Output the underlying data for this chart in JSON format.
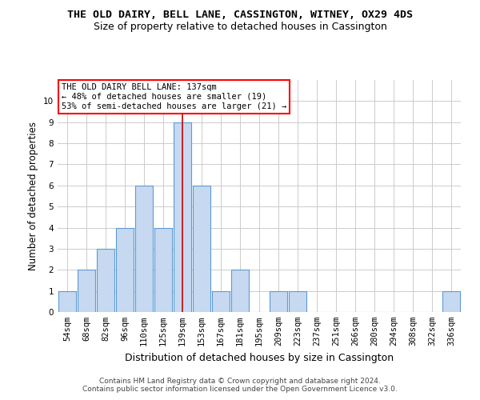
{
  "title": "THE OLD DAIRY, BELL LANE, CASSINGTON, WITNEY, OX29 4DS",
  "subtitle": "Size of property relative to detached houses in Cassington",
  "xlabel": "Distribution of detached houses by size in Cassington",
  "ylabel": "Number of detached properties",
  "categories": [
    "54sqm",
    "68sqm",
    "82sqm",
    "96sqm",
    "110sqm",
    "125sqm",
    "139sqm",
    "153sqm",
    "167sqm",
    "181sqm",
    "195sqm",
    "209sqm",
    "223sqm",
    "237sqm",
    "251sqm",
    "266sqm",
    "280sqm",
    "294sqm",
    "308sqm",
    "322sqm",
    "336sqm"
  ],
  "values": [
    1,
    2,
    3,
    4,
    6,
    4,
    9,
    6,
    1,
    2,
    0,
    1,
    1,
    0,
    0,
    0,
    0,
    0,
    0,
    0,
    1
  ],
  "bar_color": "#c6d9f0",
  "bar_edge_color": "#5b9bd5",
  "highlight_index": 6,
  "highlight_line_color": "#cc0000",
  "ylim": [
    0,
    11
  ],
  "yticks": [
    0,
    1,
    2,
    3,
    4,
    5,
    6,
    7,
    8,
    9,
    10,
    11
  ],
  "annotation_line1": "THE OLD DAIRY BELL LANE: 137sqm",
  "annotation_line2": "← 48% of detached houses are smaller (19)",
  "annotation_line3": "53% of semi-detached houses are larger (21) →",
  "footer1": "Contains HM Land Registry data © Crown copyright and database right 2024.",
  "footer2": "Contains public sector information licensed under the Open Government Licence v3.0.",
  "bg_color": "#ffffff",
  "grid_color": "#cccccc",
  "title_fontsize": 9.5,
  "subtitle_fontsize": 9,
  "tick_fontsize": 7.5,
  "ylabel_fontsize": 8.5,
  "xlabel_fontsize": 9
}
